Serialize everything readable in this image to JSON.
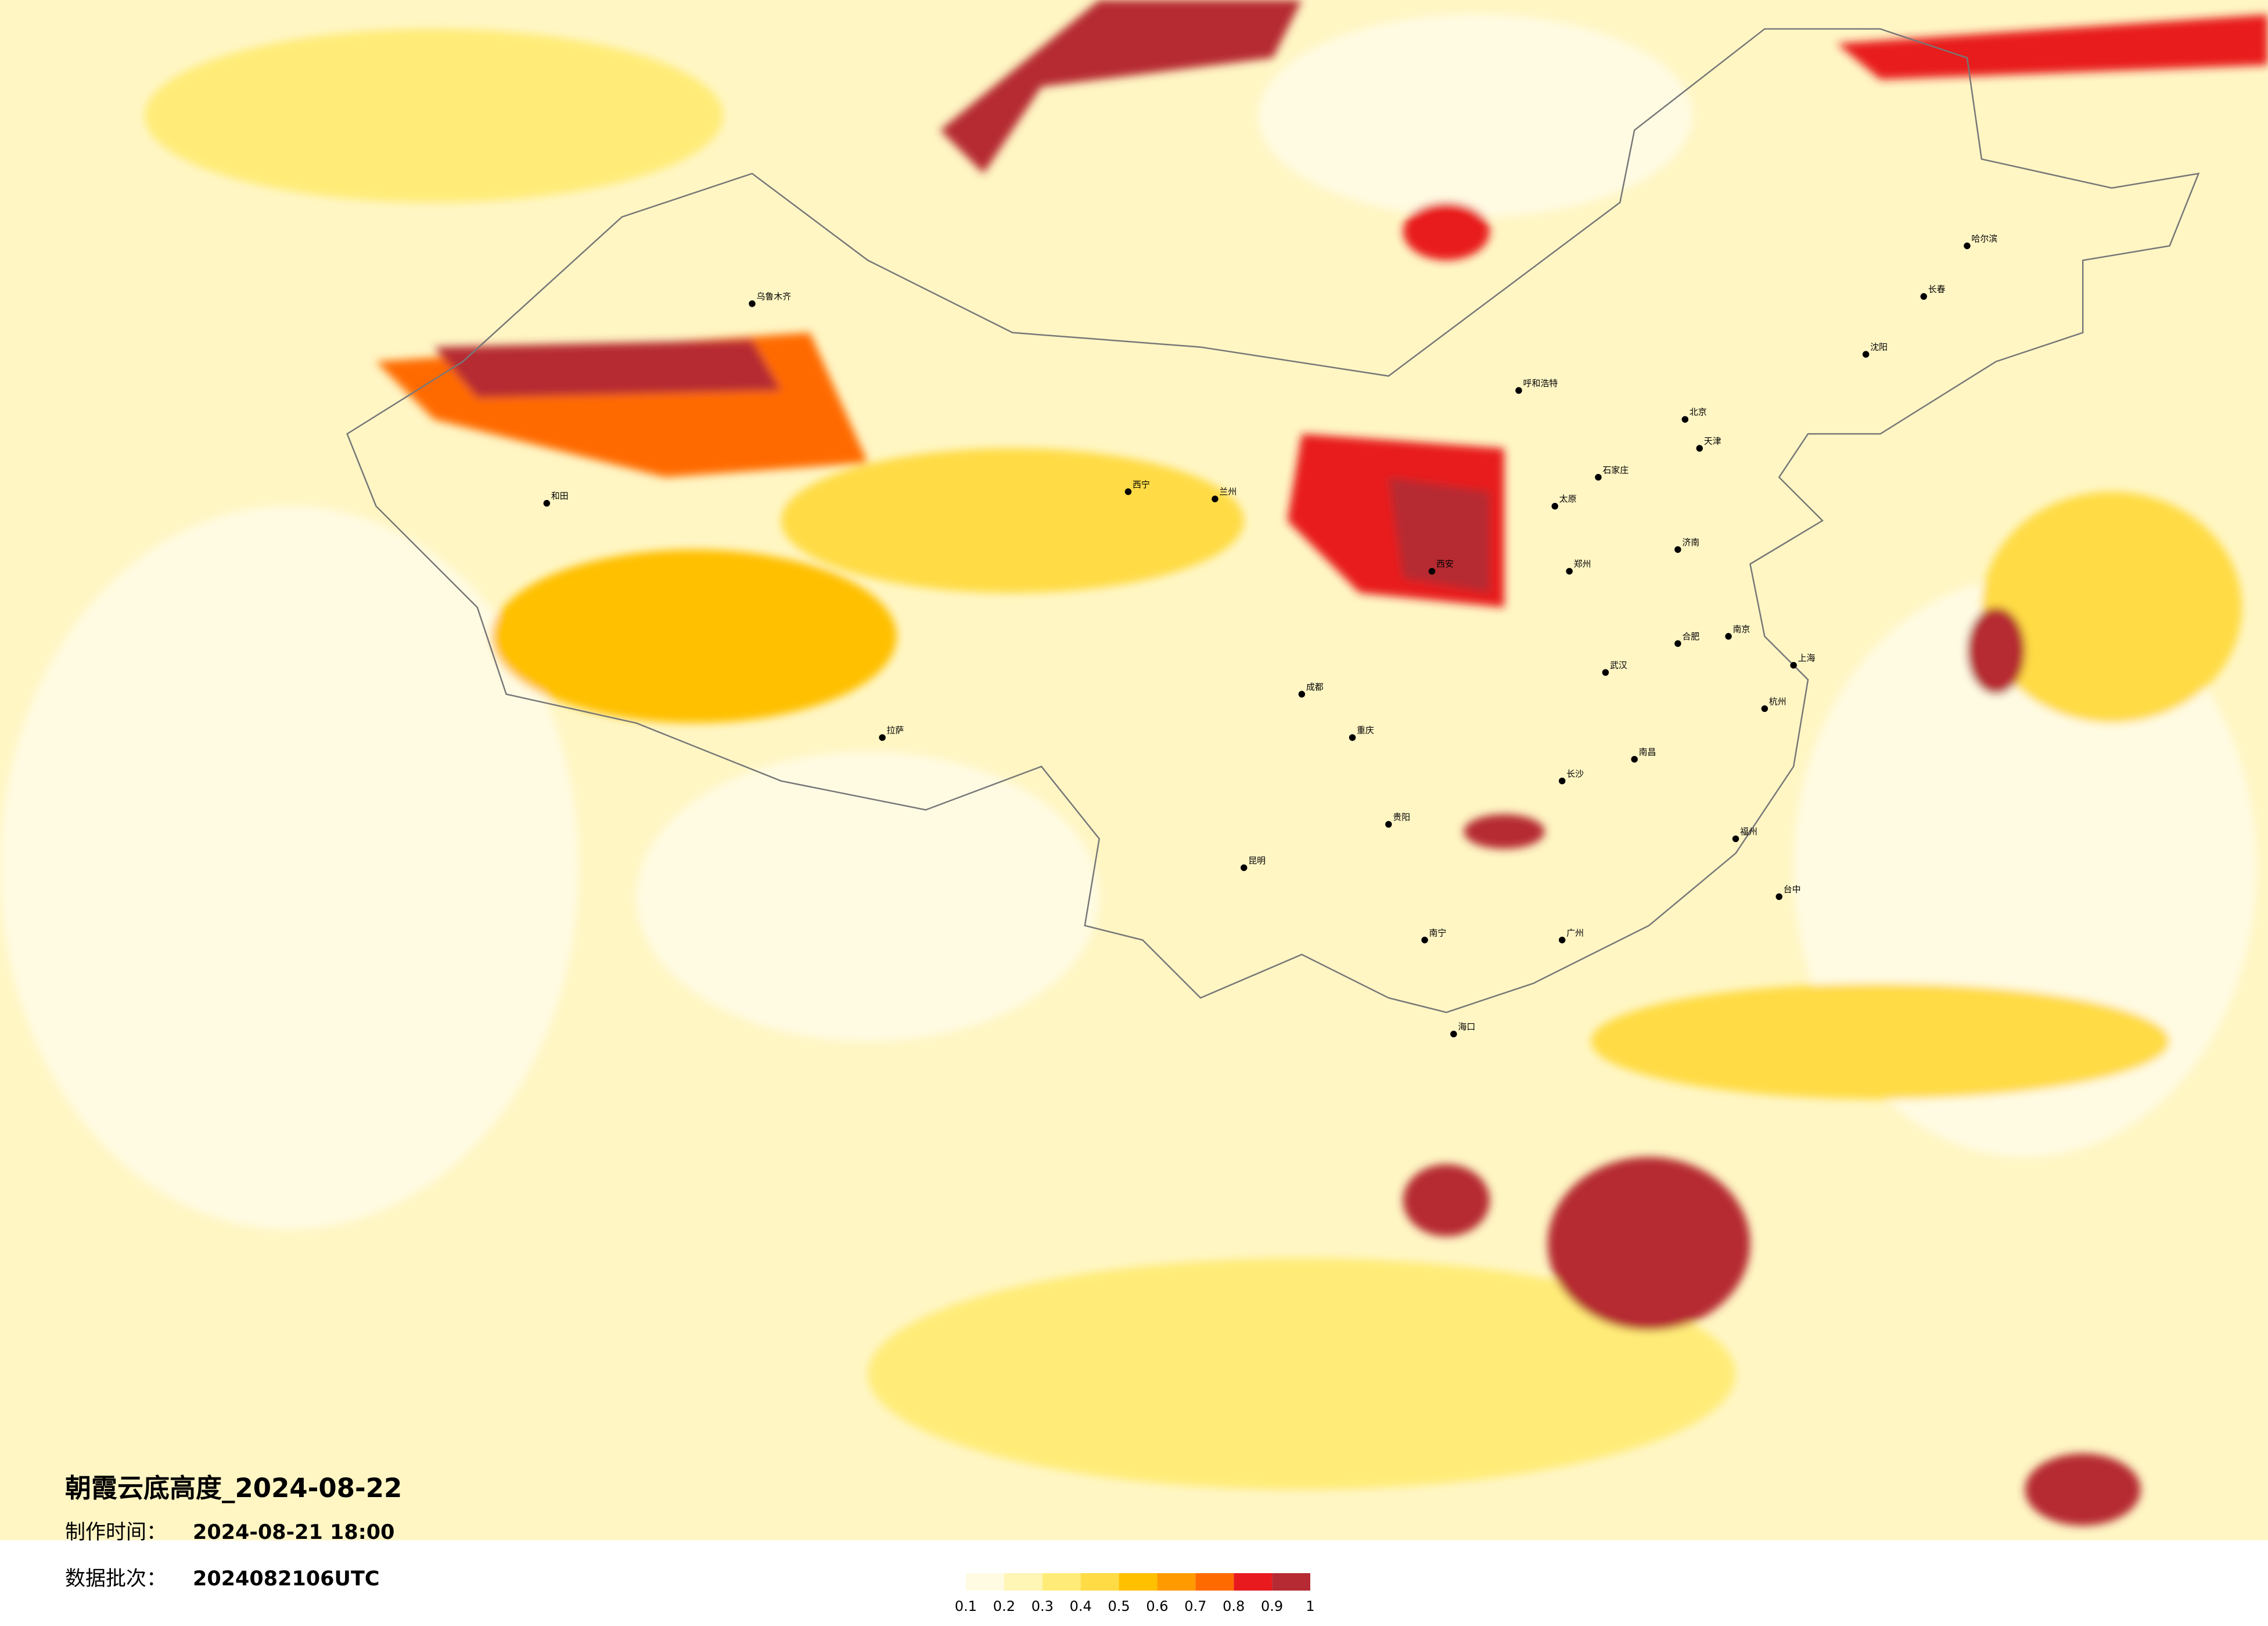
{
  "header": {
    "title": "朝霞云底高度_2024-08-22",
    "made_label": "制作时间：",
    "made_time": "2024-08-21 18:00",
    "batch_label": "数据批次：",
    "batch": "2024082106UTC"
  },
  "colorbar": {
    "ticks": [
      0.1,
      0.2,
      0.3,
      0.4,
      0.5,
      0.6,
      0.7,
      0.8,
      0.9,
      1
    ],
    "colors": [
      "#fffbe3",
      "#fff5b4",
      "#ffec78",
      "#ffdb45",
      "#ffc000",
      "#ff9a00",
      "#ff6a00",
      "#e81a1e",
      "#b62a33"
    ]
  },
  "cities": [
    "呼和浩特",
    "北京",
    "天津",
    "石家庄",
    "太原",
    "济南",
    "郑州",
    "西安",
    "武汉",
    "长沙",
    "南昌",
    "合肥",
    "南京",
    "上海",
    "杭州",
    "福州",
    "广州",
    "南宁",
    "贵阳",
    "昆明",
    "成都",
    "重庆",
    "兰州",
    "西宁",
    "拉萨",
    "乌鲁木齐",
    "哈尔滨",
    "长春",
    "沈阳",
    "海口",
    "台中",
    "和田"
  ]
}
